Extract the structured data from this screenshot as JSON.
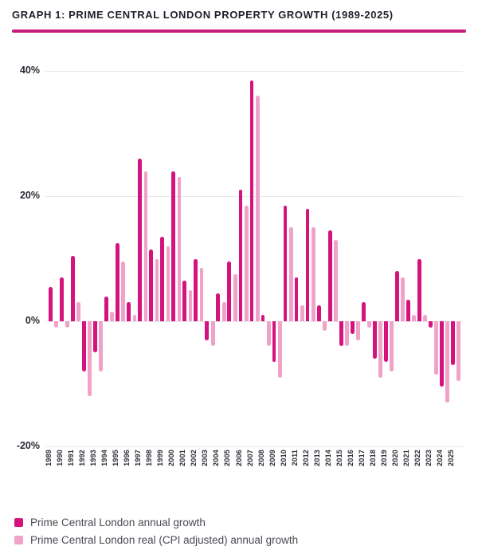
{
  "header": {
    "title": "GRAPH 1: PRIME CENTRAL LONDON PROPERTY GROWTH (1989-2025)"
  },
  "colors": {
    "annual_growth": "#d5137f",
    "real_growth": "#f0a2c9",
    "title_rule": "#c61c7d",
    "gridline": "#e9e9e9",
    "title_text": "#1f1f2b",
    "axis_text": "#2a2a34",
    "legend_text": "#4a4a52"
  },
  "chart_data": {
    "type": "bar",
    "title": "GRAPH 1: PRIME CENTRAL LONDON PROPERTY GROWTH (1989-2025)",
    "categories": [
      "1989",
      "1990",
      "1991",
      "1992",
      "1993",
      "1994",
      "1995",
      "1996",
      "1997",
      "1998",
      "1999",
      "2000",
      "2001",
      "2002",
      "2003",
      "2004",
      "2005",
      "2006",
      "2007",
      "2008",
      "2009",
      "2010",
      "2011",
      "2012",
      "2013",
      "2014",
      "2015",
      "2016",
      "2017",
      "2018",
      "2019",
      "2020",
      "2021",
      "2022",
      "2023",
      "2024",
      "2025"
    ],
    "series": [
      {
        "name": "Prime Central London annual growth",
        "color": "#d5137f",
        "values": [
          5.5,
          7,
          10.5,
          -8,
          -5,
          4,
          12.5,
          3,
          26,
          11.5,
          13.5,
          24,
          6.5,
          10,
          -3,
          4.5,
          9.5,
          21,
          38.5,
          1,
          -6.5,
          18.5,
          7,
          18,
          2.5,
          14.5,
          -4,
          -2,
          3,
          -6,
          -6.5,
          8,
          3.5,
          10,
          -1,
          -10.5,
          -7
        ]
      },
      {
        "name": "Prime Central London real (CPI adjusted) annual growth",
        "color": "#f0a2c9",
        "values": [
          -1,
          -1,
          3,
          -12,
          -8,
          1.5,
          9.5,
          1,
          24,
          10,
          12,
          23,
          5,
          8.5,
          -4,
          3,
          7.5,
          18.5,
          36,
          -4,
          -9,
          15,
          2.5,
          15,
          -1.5,
          13,
          -4,
          -3,
          -1,
          -9,
          -8,
          7,
          1,
          1,
          -8.5,
          -13,
          -9.5
        ]
      }
    ],
    "xlabel": "",
    "ylabel": "",
    "ylim": [
      -20,
      40
    ],
    "yticks": [
      {
        "value": 40,
        "label": "40%"
      },
      {
        "value": 20,
        "label": "20%"
      },
      {
        "value": 0,
        "label": "0%"
      },
      {
        "value": -20,
        "label": "-20%"
      }
    ],
    "grid": true,
    "legend_position": "bottom"
  },
  "legend": {
    "items": [
      {
        "label": "Prime Central London annual growth",
        "color": "#d5137f"
      },
      {
        "label": "Prime Central London real (CPI adjusted) annual growth",
        "color": "#f0a2c9"
      }
    ]
  }
}
